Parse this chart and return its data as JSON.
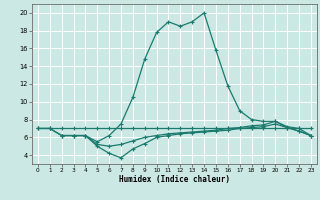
{
  "xlabel": "Humidex (Indice chaleur)",
  "bg_color": "#cce8e4",
  "grid_color": "#ffffff",
  "line_color": "#1a7a6e",
  "xlim": [
    -0.5,
    23.5
  ],
  "ylim": [
    3,
    21
  ],
  "xticks": [
    0,
    1,
    2,
    3,
    4,
    5,
    6,
    7,
    8,
    9,
    10,
    11,
    12,
    13,
    14,
    15,
    16,
    17,
    18,
    19,
    20,
    21,
    22,
    23
  ],
  "yticks": [
    4,
    6,
    8,
    10,
    12,
    14,
    16,
    18,
    20
  ],
  "curve1_x": [
    0,
    1,
    2,
    3,
    4,
    5,
    6,
    7,
    8,
    9,
    10,
    11,
    12,
    13,
    14,
    15,
    16,
    17,
    18,
    19,
    20,
    21,
    22,
    23
  ],
  "curve1_y": [
    7.0,
    7.0,
    7.0,
    7.0,
    7.0,
    7.0,
    7.0,
    7.0,
    7.0,
    7.0,
    7.0,
    7.0,
    7.0,
    7.0,
    7.0,
    7.0,
    7.0,
    7.0,
    7.0,
    7.0,
    7.0,
    7.0,
    7.0,
    7.0
  ],
  "curve2_x": [
    0,
    1,
    2,
    3,
    4,
    5,
    6,
    7,
    8,
    9,
    10,
    11,
    12,
    13,
    14,
    15,
    16,
    17,
    18,
    19,
    20,
    21,
    22,
    23
  ],
  "curve2_y": [
    7.0,
    7.0,
    6.2,
    6.2,
    6.2,
    5.0,
    4.2,
    3.7,
    4.7,
    5.3,
    6.0,
    6.2,
    6.4,
    6.5,
    6.6,
    6.7,
    6.8,
    7.0,
    7.1,
    7.2,
    7.5,
    7.1,
    6.7,
    6.2
  ],
  "curve3_x": [
    2,
    3,
    4,
    5,
    6,
    7,
    8,
    9,
    10,
    11,
    12,
    13,
    14,
    15,
    16,
    17,
    18,
    19,
    20,
    21,
    22,
    23
  ],
  "curve3_y": [
    6.2,
    6.2,
    6.2,
    5.5,
    6.2,
    7.5,
    10.5,
    14.8,
    17.8,
    19.0,
    18.5,
    19.0,
    20.0,
    15.8,
    11.8,
    9.0,
    8.0,
    7.8,
    7.8,
    7.2,
    7.0,
    6.2
  ],
  "curve4_x": [
    0,
    1,
    2,
    3,
    4,
    5,
    6,
    7,
    8,
    9,
    10,
    11,
    12,
    13,
    14,
    15,
    16,
    17,
    18,
    19,
    20,
    21,
    22,
    23
  ],
  "curve4_y": [
    7.0,
    7.0,
    6.2,
    6.2,
    6.2,
    5.2,
    5.0,
    5.2,
    5.6,
    6.0,
    6.2,
    6.4,
    6.5,
    6.6,
    6.7,
    6.8,
    7.0,
    7.1,
    7.3,
    7.4,
    7.8,
    7.1,
    6.7,
    6.2
  ]
}
